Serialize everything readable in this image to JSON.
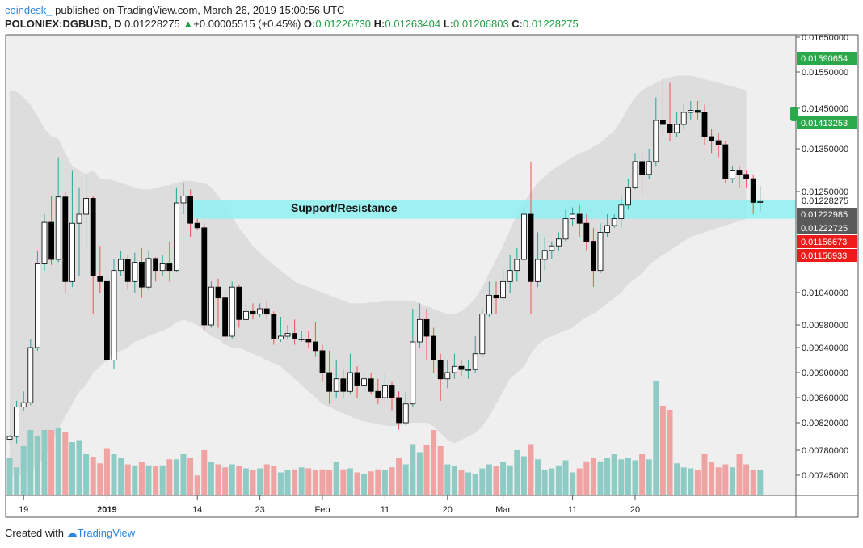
{
  "header": {
    "author": "coindesk_",
    "published_text": "published on TradingView.com, March 26, 2019 15:00:56 UTC",
    "symbol": "POLONIEX:DGBUSD",
    "interval": "D",
    "last_price": "0.01228275",
    "change": "+0.00005515 (+0.45%)",
    "ohlc": {
      "o_label": "O:",
      "o": "0.01226730",
      "h_label": "H:",
      "h": "0.01263404",
      "l_label": "L:",
      "l": "0.01206803",
      "c_label": "C:",
      "c": "0.01228275"
    }
  },
  "footer": {
    "created_with": "Created with",
    "brand": "TradingView"
  },
  "colors": {
    "up_body": "#ffffff",
    "down_body": "#000000",
    "up_wick": "#26a69a",
    "down_wick": "#ef5350",
    "vol_up": "#8fcbc5",
    "vol_down": "#f0a3a3",
    "band_fill": "#d9d9d9",
    "plot_bg": "#efefef",
    "zone": "#8ff1f0",
    "tag_green": "#2ba84a",
    "tag_gray": "#5a5a5a",
    "tag_red": "#ef1b1b"
  },
  "chart_data": {
    "type": "candlestick",
    "y_ticks": [
      "0.01650000",
      "0.01550000",
      "0.01450000",
      "0.01350000",
      "0.01250000",
      "0.01040000",
      "0.00980000",
      "0.00940000",
      "0.00900000",
      "0.00860000",
      "0.00820000",
      "0.00780000",
      "0.00745000"
    ],
    "x_ticks": [
      {
        "label": "19",
        "index": 2
      },
      {
        "label": "2019",
        "index": 14
      },
      {
        "label": "14",
        "index": 27
      },
      {
        "label": "23",
        "index": 36
      },
      {
        "label": "Feb",
        "index": 45
      },
      {
        "label": "11",
        "index": 54
      },
      {
        "label": "20",
        "index": 63
      },
      {
        "label": "Mar",
        "index": 71
      },
      {
        "label": "11",
        "index": 81
      },
      {
        "label": "20",
        "index": 90
      }
    ],
    "annotation": {
      "label": "Support/Resistance",
      "from": 0.0119,
      "to": 0.01232
    },
    "price_tags": [
      {
        "value": "0.01590654",
        "kind": "green"
      },
      {
        "value": "0.01413253",
        "kind": "green"
      },
      {
        "value": "0.01228275",
        "kind": "plain"
      },
      {
        "value": "0.01222985",
        "kind": "gray"
      },
      {
        "value": "0.01222725",
        "kind": "gray"
      },
      {
        "value": "0.01156673",
        "kind": "red"
      },
      {
        "value": "0.01156933",
        "kind": "red"
      }
    ],
    "candles": [
      [
        0.00796,
        0.008,
        0.00795,
        0.00802,
        180
      ],
      [
        0.008,
        0.00845,
        0.0079,
        0.00855,
        135
      ],
      [
        0.00845,
        0.00852,
        0.00838,
        0.0087,
        240
      ],
      [
        0.00852,
        0.0094,
        0.00848,
        0.00955,
        320
      ],
      [
        0.0094,
        0.01092,
        0.00935,
        0.0112,
        290
      ],
      [
        0.01092,
        0.01182,
        0.0108,
        0.012,
        320
      ],
      [
        0.01182,
        0.011,
        0.0109,
        0.0124,
        320
      ],
      [
        0.011,
        0.01238,
        0.01095,
        0.0133,
        330
      ],
      [
        0.01238,
        0.0106,
        0.0104,
        0.0125,
        310
      ],
      [
        0.0106,
        0.0118,
        0.0105,
        0.013,
        260
      ],
      [
        0.0118,
        0.012,
        0.0107,
        0.0126,
        270
      ],
      [
        0.012,
        0.01235,
        0.0112,
        0.013,
        200
      ],
      [
        0.01235,
        0.0107,
        0.01,
        0.0124,
        185
      ],
      [
        0.0107,
        0.0106,
        0.0104,
        0.0113,
        155
      ],
      [
        0.0106,
        0.0092,
        0.0091,
        0.0107,
        230
      ],
      [
        0.0092,
        0.0108,
        0.00905,
        0.011,
        200
      ],
      [
        0.0108,
        0.011,
        0.0107,
        0.0112,
        180
      ],
      [
        0.011,
        0.0106,
        0.01045,
        0.0111,
        150
      ],
      [
        0.0106,
        0.01095,
        0.0104,
        0.01115,
        145
      ],
      [
        0.01095,
        0.0105,
        0.0103,
        0.01125,
        160
      ],
      [
        0.0105,
        0.01102,
        0.01045,
        0.0112,
        145
      ],
      [
        0.01102,
        0.0108,
        0.0106,
        0.01105,
        140
      ],
      [
        0.0108,
        0.01092,
        0.0107,
        0.0111,
        145
      ],
      [
        0.01092,
        0.0108,
        0.0106,
        0.0114,
        175
      ],
      [
        0.0108,
        0.01225,
        0.01078,
        0.0126,
        175
      ],
      [
        0.01225,
        0.0124,
        0.012,
        0.0127,
        200
      ],
      [
        0.0124,
        0.0118,
        0.0115,
        0.01255,
        180
      ],
      [
        0.0118,
        0.0117,
        0.01165,
        0.0119,
        95
      ],
      [
        0.0117,
        0.0098,
        0.0097,
        0.0118,
        220
      ],
      [
        0.0098,
        0.0105,
        0.00975,
        0.0106,
        160
      ],
      [
        0.0105,
        0.0103,
        0.00975,
        0.01065,
        150
      ],
      [
        0.0103,
        0.0096,
        0.0095,
        0.0104,
        135
      ],
      [
        0.0096,
        0.0105,
        0.00955,
        0.0106,
        150
      ],
      [
        0.0105,
        0.0099,
        0.00975,
        0.01055,
        140
      ],
      [
        0.0099,
        0.01005,
        0.00985,
        0.0102,
        130
      ],
      [
        0.01005,
        0.01,
        0.0099,
        0.0102,
        120
      ],
      [
        0.01,
        0.0101,
        0.00995,
        0.0102,
        130
      ],
      [
        0.0101,
        0.01,
        0.0099,
        0.01025,
        150
      ],
      [
        0.01,
        0.00955,
        0.00945,
        0.01005,
        140
      ],
      [
        0.00955,
        0.0096,
        0.0095,
        0.00995,
        110
      ],
      [
        0.0096,
        0.00965,
        0.00955,
        0.0098,
        120
      ],
      [
        0.00965,
        0.00955,
        0.00945,
        0.0099,
        125
      ],
      [
        0.00955,
        0.00955,
        0.0095,
        0.0097,
        135
      ],
      [
        0.00955,
        0.0095,
        0.0094,
        0.0097,
        130
      ],
      [
        0.0095,
        0.00935,
        0.00925,
        0.00985,
        120
      ],
      [
        0.00935,
        0.009,
        0.00885,
        0.00945,
        125
      ],
      [
        0.009,
        0.0087,
        0.0085,
        0.00935,
        120
      ],
      [
        0.0087,
        0.0089,
        0.0086,
        0.0092,
        160
      ],
      [
        0.0089,
        0.0087,
        0.0086,
        0.00905,
        125
      ],
      [
        0.0087,
        0.009,
        0.00865,
        0.0093,
        130
      ],
      [
        0.009,
        0.0088,
        0.0086,
        0.0091,
        110
      ],
      [
        0.0088,
        0.0089,
        0.0087,
        0.009,
        100
      ],
      [
        0.0089,
        0.0087,
        0.00865,
        0.009,
        115
      ],
      [
        0.0087,
        0.0086,
        0.0085,
        0.0089,
        125
      ],
      [
        0.0086,
        0.0088,
        0.00855,
        0.009,
        120
      ],
      [
        0.0088,
        0.0086,
        0.0084,
        0.00885,
        135
      ],
      [
        0.0086,
        0.0082,
        0.0081,
        0.0087,
        180
      ],
      [
        0.0082,
        0.0085,
        0.00815,
        0.0087,
        150
      ],
      [
        0.0085,
        0.0095,
        0.00845,
        0.0101,
        250
      ],
      [
        0.0095,
        0.0099,
        0.0094,
        0.0102,
        210
      ],
      [
        0.0099,
        0.0096,
        0.0092,
        0.0101,
        245
      ],
      [
        0.0096,
        0.0092,
        0.009,
        0.00975,
        320
      ],
      [
        0.0092,
        0.0089,
        0.00855,
        0.0093,
        240
      ],
      [
        0.0089,
        0.009,
        0.00875,
        0.0092,
        150
      ],
      [
        0.009,
        0.0091,
        0.0089,
        0.0093,
        140
      ],
      [
        0.0091,
        0.00905,
        0.00895,
        0.0092,
        120
      ],
      [
        0.00905,
        0.00905,
        0.0089,
        0.0092,
        110
      ],
      [
        0.00905,
        0.0093,
        0.009,
        0.0096,
        100
      ],
      [
        0.0093,
        0.01,
        0.00925,
        0.0101,
        130
      ],
      [
        0.01,
        0.01035,
        0.00995,
        0.0106,
        150
      ],
      [
        0.01035,
        0.0103,
        0.01,
        0.0106,
        140
      ],
      [
        0.0103,
        0.0106,
        0.0102,
        0.01085,
        160
      ],
      [
        0.0106,
        0.0108,
        0.0104,
        0.0111,
        145
      ],
      [
        0.0108,
        0.011,
        0.0106,
        0.01125,
        220
      ],
      [
        0.011,
        0.012,
        0.01095,
        0.01215,
        190
      ],
      [
        0.012,
        0.0106,
        0.01,
        0.0132,
        250
      ],
      [
        0.0106,
        0.011,
        0.0105,
        0.0116,
        175
      ],
      [
        0.011,
        0.0112,
        0.0108,
        0.0115,
        120
      ],
      [
        0.0112,
        0.0113,
        0.011,
        0.0114,
        130
      ],
      [
        0.0113,
        0.01145,
        0.0112,
        0.0116,
        145
      ],
      [
        0.01145,
        0.0119,
        0.0114,
        0.0121,
        170
      ],
      [
        0.0119,
        0.012,
        0.01175,
        0.01215,
        110
      ],
      [
        0.012,
        0.0118,
        0.0115,
        0.0122,
        130
      ],
      [
        0.0118,
        0.0114,
        0.0112,
        0.012,
        165
      ],
      [
        0.0114,
        0.0108,
        0.0105,
        0.0117,
        180
      ],
      [
        0.0108,
        0.0116,
        0.01075,
        0.0118,
        165
      ],
      [
        0.0116,
        0.01175,
        0.0115,
        0.012,
        180
      ],
      [
        0.01175,
        0.0119,
        0.0117,
        0.012,
        200
      ],
      [
        0.0119,
        0.0122,
        0.0117,
        0.0124,
        175
      ],
      [
        0.0122,
        0.0126,
        0.0121,
        0.0128,
        180
      ],
      [
        0.0126,
        0.0132,
        0.01255,
        0.0134,
        170
      ],
      [
        0.0132,
        0.0129,
        0.0124,
        0.0135,
        200
      ],
      [
        0.0129,
        0.0132,
        0.0128,
        0.0135,
        175
      ],
      [
        0.0132,
        0.0142,
        0.0131,
        0.0148,
        560
      ],
      [
        0.0142,
        0.0141,
        0.0138,
        0.0153,
        440
      ],
      [
        0.0141,
        0.0139,
        0.0137,
        0.0152,
        420
      ],
      [
        0.0139,
        0.0141,
        0.0138,
        0.0144,
        155
      ],
      [
        0.0141,
        0.0144,
        0.014,
        0.0146,
        135
      ],
      [
        0.0144,
        0.01445,
        0.0142,
        0.0147,
        130
      ],
      [
        0.01445,
        0.0144,
        0.0142,
        0.0147,
        120
      ],
      [
        0.0144,
        0.0138,
        0.0136,
        0.0146,
        200
      ],
      [
        0.0138,
        0.0137,
        0.0134,
        0.014,
        160
      ],
      [
        0.0137,
        0.0136,
        0.0133,
        0.0139,
        135
      ],
      [
        0.0136,
        0.0128,
        0.0127,
        0.0137,
        150
      ],
      [
        0.0128,
        0.013,
        0.0127,
        0.0131,
        135
      ],
      [
        0.013,
        0.0129,
        0.0126,
        0.0131,
        200
      ],
      [
        0.0129,
        0.0128,
        0.0126,
        0.013,
        150
      ],
      [
        0.0128,
        0.01226,
        0.012,
        0.0129,
        120
      ],
      [
        0.01226,
        0.01228,
        0.01206,
        0.01263,
        120
      ]
    ],
    "band_upper": [
      0.015,
      0.01495,
      0.0148,
      0.0146,
      0.0143,
      0.014,
      0.0138,
      0.01375,
      0.0134,
      0.0131,
      0.013,
      0.0129,
      0.013,
      0.0128,
      0.0128,
      0.01275,
      0.0127,
      0.01265,
      0.0126,
      0.01255,
      0.01255,
      0.01258,
      0.01262,
      0.01265,
      0.0127,
      0.01275,
      0.01275,
      0.01272,
      0.0127,
      0.0126,
      0.0124,
      0.0122,
      0.01195,
      0.0117,
      0.0115,
      0.0113,
      0.01115,
      0.011,
      0.0109,
      0.0108,
      0.0107,
      0.0106,
      0.01055,
      0.0105,
      0.01045,
      0.0104,
      0.01035,
      0.0103,
      0.01025,
      0.0102,
      0.0102,
      0.0102,
      0.01022,
      0.01022,
      0.01024,
      0.01024,
      0.01025,
      0.01025,
      0.01025,
      0.0102,
      0.01015,
      0.0101,
      0.01005,
      0.01,
      0.01,
      0.01005,
      0.01015,
      0.0103,
      0.0105,
      0.01075,
      0.011,
      0.0113,
      0.01165,
      0.012,
      0.01225,
      0.0125,
      0.0127,
      0.01285,
      0.013,
      0.0131,
      0.0132,
      0.0133,
      0.0134,
      0.01345,
      0.01355,
      0.01365,
      0.0138,
      0.01395,
      0.0142,
      0.0145,
      0.0148,
      0.015,
      0.0151,
      0.0152,
      0.0153,
      0.01535,
      0.0154,
      0.0154,
      0.0154,
      0.01535,
      0.0153,
      0.01525,
      0.0152,
      0.01515,
      0.0151,
      0.01505,
      0.015
    ],
    "band_lower": [
      0.00745,
      0.00745,
      0.00745,
      0.0075,
      0.0076,
      0.0077,
      0.0079,
      0.0081,
      0.0083,
      0.0085,
      0.0087,
      0.0088,
      0.009,
      0.0091,
      0.0092,
      0.0093,
      0.00935,
      0.0094,
      0.0095,
      0.00955,
      0.0096,
      0.00965,
      0.0097,
      0.00975,
      0.00985,
      0.0099,
      0.00985,
      0.0098,
      0.0097,
      0.0096,
      0.00955,
      0.00945,
      0.0094,
      0.0094,
      0.00935,
      0.0093,
      0.00925,
      0.0092,
      0.00915,
      0.0091,
      0.009,
      0.0089,
      0.0088,
      0.0087,
      0.0086,
      0.0085,
      0.00845,
      0.0084,
      0.00835,
      0.0083,
      0.00825,
      0.00822,
      0.0082,
      0.00818,
      0.00816,
      0.00815,
      0.00816,
      0.00818,
      0.0082,
      0.0082,
      0.0082,
      0.00815,
      0.00805,
      0.00795,
      0.0079,
      0.00795,
      0.008,
      0.00805,
      0.00815,
      0.0083,
      0.0085,
      0.0087,
      0.0089,
      0.009,
      0.0091,
      0.0093,
      0.00945,
      0.00955,
      0.0096,
      0.00965,
      0.0097,
      0.00975,
      0.00985,
      0.00995,
      0.01,
      0.0101,
      0.0102,
      0.0103,
      0.0104,
      0.01055,
      0.01065,
      0.01075,
      0.0109,
      0.011,
      0.0111,
      0.0112,
      0.0113,
      0.0114,
      0.0115,
      0.01155,
      0.0116,
      0.01165,
      0.0117,
      0.01175,
      0.0118,
      0.01185,
      0.0119
    ]
  }
}
